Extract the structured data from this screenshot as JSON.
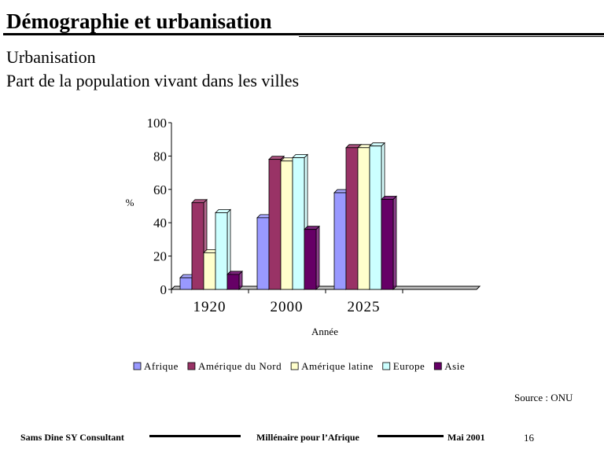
{
  "header": {
    "title": "Démographie et urbanisation",
    "subtitle1": "Urbanisation",
    "subtitle2": "Part de la population vivant dans les villes"
  },
  "chart_data": {
    "type": "bar",
    "categories": [
      "1920",
      "2000",
      "2025"
    ],
    "series": [
      {
        "name": "Afrique",
        "values": [
          7,
          43,
          58
        ],
        "color": "#9999ff"
      },
      {
        "name": "Amérique du Nord",
        "values": [
          52,
          78,
          85
        ],
        "color": "#993366"
      },
      {
        "name": "Amérique latine",
        "values": [
          22,
          77,
          85
        ],
        "color": "#ffffcc"
      },
      {
        "name": "Europe",
        "values": [
          46,
          79,
          86
        ],
        "color": "#ccffff"
      },
      {
        "name": "Asie",
        "values": [
          9,
          36,
          54
        ],
        "color": "#660066"
      }
    ],
    "xlabel": "Année",
    "ylabel": "%",
    "ylim": [
      0,
      100
    ],
    "yticks": [
      0,
      20,
      40,
      60,
      80,
      100
    ],
    "legend_position": "bottom",
    "grid": false,
    "three_d": true
  },
  "source": "Source : ONU",
  "footer": {
    "left": "Sams Dine SY Consultant",
    "center": "Millénaire pour l’Afrique",
    "right": "Mai 2001",
    "page": "16"
  }
}
